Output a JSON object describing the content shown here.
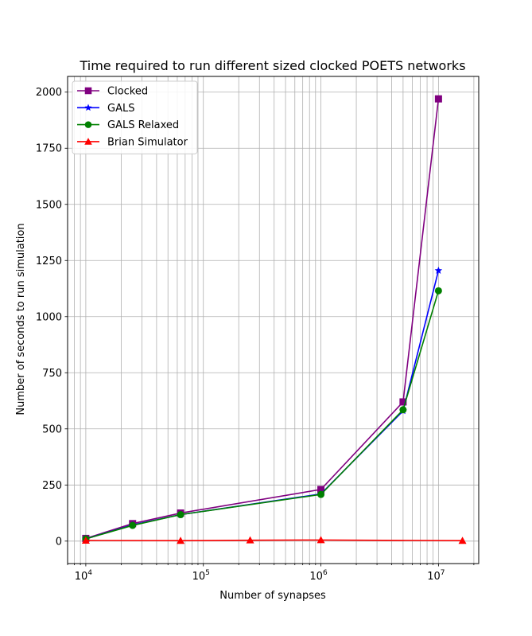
{
  "chart_data": {
    "type": "line",
    "title": "Time required to run different sized clocked POETS networks",
    "xlabel": "Number of synapses",
    "ylabel": "Number of seconds to run simulation",
    "x_scale": "log",
    "xlim": [
      7000,
      22000000
    ],
    "ylim": [
      -100,
      2070
    ],
    "x_ticks": [
      {
        "value": 10000,
        "base": "10",
        "exp": "4"
      },
      {
        "value": 100000,
        "base": "10",
        "exp": "5"
      },
      {
        "value": 1000000,
        "base": "10",
        "exp": "6"
      },
      {
        "value": 10000000,
        "base": "10",
        "exp": "7"
      }
    ],
    "y_ticks": [
      0,
      250,
      500,
      750,
      1000,
      1250,
      1500,
      1750,
      2000
    ],
    "grid": "both (major and minor x)",
    "legend_position": "upper-left",
    "series": [
      {
        "name": "Clocked",
        "color": "#800080",
        "marker": "square",
        "x": [
          10000,
          25000,
          64000,
          1000000,
          5000000,
          10000000
        ],
        "y": [
          12,
          78,
          125,
          230,
          620,
          1970
        ]
      },
      {
        "name": "GALS",
        "color": "#0000ff",
        "marker": "star",
        "x": [
          10000,
          25000,
          64000,
          1000000,
          5000000,
          10000000
        ],
        "y": [
          10,
          72,
          118,
          210,
          580,
          1205
        ]
      },
      {
        "name": "GALS Relaxed",
        "color": "#008000",
        "marker": "circle",
        "x": [
          10000,
          25000,
          64000,
          1000000,
          5000000,
          10000000
        ],
        "y": [
          10,
          70,
          118,
          208,
          585,
          1115
        ]
      },
      {
        "name": "Brian Simulator",
        "color": "#ff0000",
        "marker": "triangle",
        "x": [
          10000,
          64000,
          250000,
          1000000,
          16000000
        ],
        "y": [
          3,
          2,
          4,
          5,
          2
        ]
      }
    ]
  }
}
